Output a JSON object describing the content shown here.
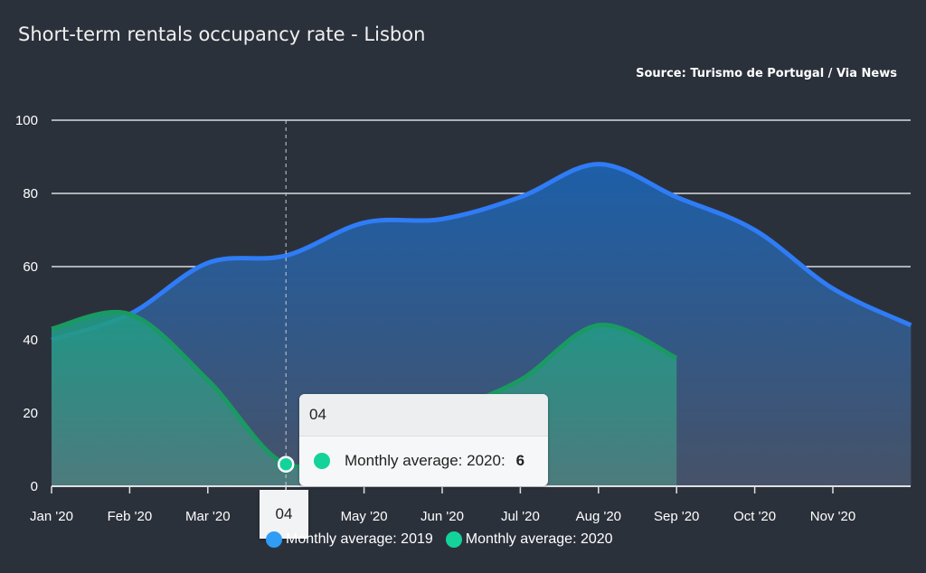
{
  "chart_data": {
    "type": "area",
    "title": "Short-term rentals occupancy rate - Lisbon",
    "source": "Source: Turismo de Portugal / Via News",
    "categories": [
      "Jan '20",
      "Feb '20",
      "Mar '20",
      "Apr '20",
      "May '20",
      "Jun '20",
      "Jul '20",
      "Aug '20",
      "Sep '20",
      "Oct '20",
      "Nov '20",
      "Dec '20"
    ],
    "xtick_labels": [
      "Jan '20",
      "Feb '20",
      "Mar '20",
      "",
      "May '20",
      "Jun '20",
      "Jul '20",
      "Aug '20",
      "Sep '20",
      "Oct '20",
      "Nov '20"
    ],
    "yticks": [
      0,
      20,
      40,
      60,
      80,
      100
    ],
    "ylim": [
      0,
      100
    ],
    "grid": true,
    "legend_position": "bottom",
    "series": [
      {
        "name": "Monthly average: 2019",
        "color": "#2f7cf6",
        "values": [
          40,
          47,
          61,
          63,
          72,
          73,
          79,
          88,
          79,
          70,
          54,
          44
        ]
      },
      {
        "name": "Monthly average: 2020",
        "color": "#13d39a",
        "values": [
          43,
          47,
          29,
          6,
          12,
          20,
          29,
          44,
          35,
          null,
          null,
          null
        ]
      }
    ],
    "tooltip": {
      "header": "04",
      "series_label": "Monthly average: 2020:",
      "value": "6"
    },
    "hover_x_label": "04"
  }
}
